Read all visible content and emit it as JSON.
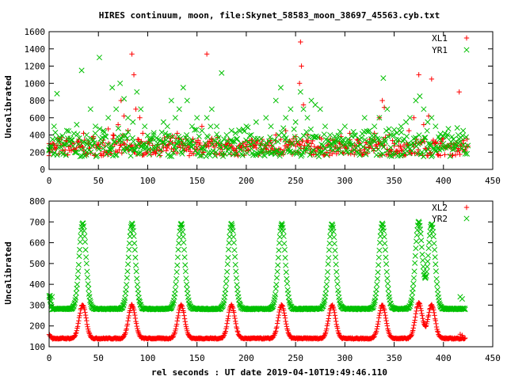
{
  "page": {
    "title": "HIRES continuum, moon, file:Skynet_58583_moon_38697_45563.cyb.txt",
    "xlabel": "rel seconds : UT date 2019-04-10T19:49:46.110"
  },
  "colors": {
    "series1": "#ff0000",
    "series2": "#00c000"
  },
  "chart_data": [
    {
      "type": "scatter",
      "ylabel": "Uncalibrated",
      "xlim": [
        0,
        450
      ],
      "ylim": [
        0,
        1600
      ],
      "xticks": [
        "0",
        "50",
        "100",
        "150",
        "200",
        "250",
        "300",
        "350",
        "400",
        "450"
      ],
      "yticks": [
        "0",
        "200",
        "400",
        "600",
        "800",
        "1000",
        "1200",
        "1400",
        "1600"
      ],
      "legend_position": "top-right",
      "series": [
        {
          "name": "XL1",
          "marker": "plus",
          "points": [
            [
              0,
              300
            ],
            [
              5,
              250
            ],
            [
              10,
              330
            ],
            [
              15,
              280
            ],
            [
              20,
              360
            ],
            [
              25,
              300
            ],
            [
              30,
              350
            ],
            [
              35,
              420
            ],
            [
              40,
              300
            ],
            [
              45,
              380
            ],
            [
              50,
              290
            ],
            [
              55,
              340
            ],
            [
              60,
              470
            ],
            [
              65,
              400
            ],
            [
              70,
              520
            ],
            [
              73,
              800
            ],
            [
              76,
              620
            ],
            [
              80,
              450
            ],
            [
              84,
              1340
            ],
            [
              86,
              1100
            ],
            [
              88,
              700
            ],
            [
              92,
              600
            ],
            [
              95,
              420
            ],
            [
              100,
              300
            ],
            [
              105,
              280
            ],
            [
              110,
              260
            ],
            [
              115,
              300
            ],
            [
              120,
              380
            ],
            [
              125,
              310
            ],
            [
              130,
              420
            ],
            [
              134,
              350
            ],
            [
              138,
              280
            ],
            [
              142,
              260
            ],
            [
              150,
              310
            ],
            [
              155,
              500
            ],
            [
              160,
              1340
            ],
            [
              165,
              360
            ],
            [
              170,
              300
            ],
            [
              175,
              280
            ],
            [
              180,
              250
            ],
            [
              185,
              270
            ],
            [
              190,
              240
            ],
            [
              195,
              230
            ],
            [
              200,
              260
            ],
            [
              205,
              300
            ],
            [
              210,
              250
            ],
            [
              215,
              230
            ],
            [
              220,
              280
            ],
            [
              225,
              310
            ],
            [
              230,
              400
            ],
            [
              235,
              350
            ],
            [
              240,
              450
            ],
            [
              245,
              320
            ],
            [
              250,
              380
            ],
            [
              254,
              1000
            ],
            [
              255,
              1480
            ],
            [
              256,
              1200
            ],
            [
              258,
              750
            ],
            [
              262,
              400
            ],
            [
              266,
              300
            ],
            [
              270,
              220
            ],
            [
              275,
              200
            ],
            [
              280,
              180
            ],
            [
              285,
              220
            ],
            [
              290,
              260
            ],
            [
              295,
              300
            ],
            [
              300,
              250
            ],
            [
              305,
              420
            ],
            [
              310,
              280
            ],
            [
              315,
              300
            ],
            [
              320,
              260
            ],
            [
              325,
              350
            ],
            [
              330,
              420
            ],
            [
              335,
              600
            ],
            [
              338,
              800
            ],
            [
              340,
              720
            ],
            [
              345,
              400
            ],
            [
              350,
              300
            ],
            [
              355,
              270
            ],
            [
              360,
              260
            ],
            [
              365,
              450
            ],
            [
              370,
              600
            ],
            [
              375,
              1100
            ],
            [
              380,
              520
            ],
            [
              385,
              620
            ],
            [
              388,
              1050
            ],
            [
              392,
              320
            ],
            [
              397,
              300
            ],
            [
              402,
              260
            ],
            [
              408,
              250
            ],
            [
              413,
              280
            ],
            [
              416,
              900
            ],
            [
              420,
              300
            ]
          ]
        },
        {
          "name": "YR1",
          "marker": "cross",
          "points": [
            [
              0,
              230
            ],
            [
              5,
              500
            ],
            [
              8,
              880
            ],
            [
              12,
              260
            ],
            [
              18,
              450
            ],
            [
              22,
              300
            ],
            [
              28,
              520
            ],
            [
              33,
              1150
            ],
            [
              38,
              400
            ],
            [
              42,
              700
            ],
            [
              47,
              500
            ],
            [
              51,
              1300
            ],
            [
              55,
              450
            ],
            [
              60,
              600
            ],
            [
              64,
              950
            ],
            [
              68,
              700
            ],
            [
              72,
              1000
            ],
            [
              76,
              820
            ],
            [
              80,
              600
            ],
            [
              85,
              550
            ],
            [
              89,
              900
            ],
            [
              93,
              700
            ],
            [
              97,
              500
            ],
            [
              102,
              350
            ],
            [
              106,
              400
            ],
            [
              110,
              300
            ],
            [
              116,
              550
            ],
            [
              120,
              500
            ],
            [
              124,
              800
            ],
            [
              128,
              600
            ],
            [
              132,
              700
            ],
            [
              136,
              950
            ],
            [
              140,
              800
            ],
            [
              145,
              500
            ],
            [
              150,
              600
            ],
            [
              155,
              450
            ],
            [
              160,
              600
            ],
            [
              165,
              700
            ],
            [
              170,
              500
            ],
            [
              175,
              1120
            ],
            [
              180,
              400
            ],
            [
              185,
              450
            ],
            [
              190,
              350
            ],
            [
              195,
              300
            ],
            [
              200,
              500
            ],
            [
              205,
              400
            ],
            [
              210,
              550
            ],
            [
              215,
              300
            ],
            [
              220,
              600
            ],
            [
              225,
              500
            ],
            [
              230,
              800
            ],
            [
              235,
              950
            ],
            [
              240,
              600
            ],
            [
              245,
              700
            ],
            [
              250,
              550
            ],
            [
              255,
              900
            ],
            [
              258,
              700
            ],
            [
              262,
              600
            ],
            [
              266,
              800
            ],
            [
              270,
              750
            ],
            [
              275,
              700
            ],
            [
              280,
              500
            ],
            [
              285,
              400
            ],
            [
              290,
              300
            ],
            [
              295,
              350
            ],
            [
              300,
              500
            ],
            [
              305,
              300
            ],
            [
              310,
              400
            ],
            [
              315,
              350
            ],
            [
              320,
              600
            ],
            [
              325,
              450
            ],
            [
              330,
              500
            ],
            [
              335,
              600
            ],
            [
              339,
              1060
            ],
            [
              343,
              700
            ],
            [
              347,
              400
            ],
            [
              352,
              300
            ],
            [
              357,
              500
            ],
            [
              362,
              550
            ],
            [
              366,
              600
            ],
            [
              372,
              800
            ],
            [
              376,
              850
            ],
            [
              380,
              700
            ],
            [
              384,
              550
            ],
            [
              388,
              600
            ],
            [
              392,
              500
            ],
            [
              396,
              350
            ],
            [
              400,
              300
            ],
            [
              405,
              260
            ],
            [
              410,
              350
            ],
            [
              415,
              400
            ],
            [
              420,
              450
            ]
          ]
        }
      ],
      "bands": [
        {
          "series": "XL1",
          "x_range": [
            0,
            425
          ],
          "y_range": [
            160,
            400
          ]
        },
        {
          "series": "YR1",
          "x_range": [
            0,
            425
          ],
          "y_range": [
            150,
            500
          ]
        }
      ]
    },
    {
      "type": "scatter",
      "ylabel": "Uncalibrated",
      "xlim": [
        0,
        450
      ],
      "ylim": [
        100,
        800
      ],
      "xticks": [
        "0",
        "50",
        "100",
        "150",
        "200",
        "250",
        "300",
        "350",
        "400",
        "450"
      ],
      "yticks": [
        "100",
        "200",
        "300",
        "400",
        "500",
        "600",
        "700",
        "800"
      ],
      "legend_position": "top-right",
      "series": [
        {
          "name": "XL2",
          "marker": "plus",
          "baseline": 140,
          "start_x": 0,
          "start_value": 160,
          "end_x": 422,
          "end_value": 135,
          "peaks": [
            [
              34,
              300
            ],
            [
              84,
              300
            ],
            [
              134,
              300
            ],
            [
              185,
              300
            ],
            [
              236,
              300
            ],
            [
              287,
              300
            ],
            [
              338,
              300
            ],
            [
              375,
              310
            ],
            [
              388,
              300
            ]
          ],
          "peak_width": 3.5,
          "x_range": [
            0,
            422
          ],
          "extra_points": [
            [
              417,
              160
            ],
            [
              419,
              155
            ]
          ]
        },
        {
          "name": "YR2",
          "marker": "cross",
          "baseline": 282,
          "start_x": 0,
          "start_value": 345,
          "end_x": 422,
          "end_value": 275,
          "peaks": [
            [
              34,
              695
            ],
            [
              84,
              690
            ],
            [
              134,
              690
            ],
            [
              185,
              690
            ],
            [
              236,
              690
            ],
            [
              287,
              690
            ],
            [
              338,
              690
            ],
            [
              375,
              700
            ],
            [
              388,
              690
            ]
          ],
          "peak_width": 3.5,
          "x_range": [
            0,
            422
          ],
          "extra_points": [
            [
              1,
              345
            ],
            [
              3,
              340
            ],
            [
              417,
              340
            ],
            [
              419,
              330
            ]
          ]
        }
      ]
    }
  ]
}
